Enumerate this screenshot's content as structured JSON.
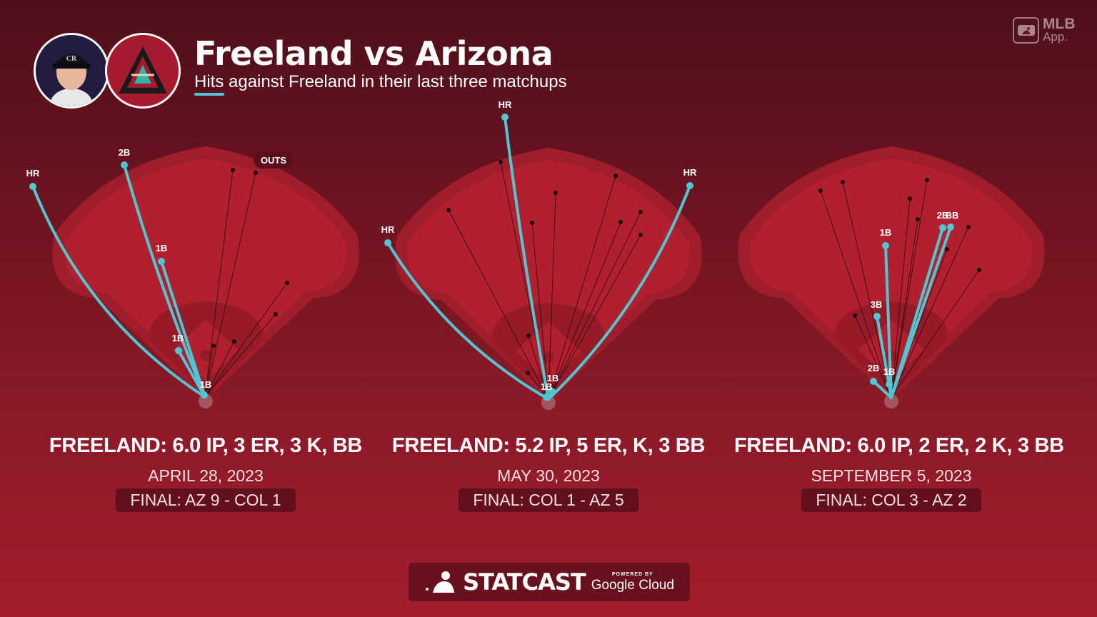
{
  "header": {
    "title": "Freeland vs Arizona",
    "subtitle": "Hits against Freeland in their last three matchups",
    "app_badge_top": "MLB",
    "app_badge_bottom": "App."
  },
  "colors": {
    "hit_line": "#4fc6d2",
    "out_line": "#1a0a0c",
    "field": "#b2202f",
    "field_outer": "#a01d2c"
  },
  "icons": [
    "player-headshot",
    "diamondbacks-logo",
    "mlb-app-logo",
    "statcast-logo"
  ],
  "outs_label": "OUTS",
  "games": [
    {
      "summary": "FREELAND: 6.0 IP, 3 ER, 3 K, BB",
      "date": "APRIL 28, 2023",
      "final": "FINAL: AZ 9 - COL 1",
      "hit_labels": [
        "HR",
        "2B",
        "1B",
        "1B",
        "1B"
      ]
    },
    {
      "summary": "FREELAND: 5.2 IP, 5 ER, K, 3 BB",
      "date": "MAY 30, 2023",
      "final": "FINAL: COL 1 - AZ 5",
      "hit_labels": [
        "HR",
        "HR",
        "HR",
        "1B",
        "1B"
      ]
    },
    {
      "summary": "FREELAND: 6.0 IP, 2 ER, 2 K, 3 BB",
      "date": "SEPTEMBER 5, 2023",
      "final": "FINAL: COL 3 - AZ 2",
      "hit_labels": [
        "1B",
        "2B",
        "BB",
        "3B",
        "2B",
        "1B"
      ]
    }
  ],
  "footer": {
    "brand": "STATCAST",
    "powered_by": "POWERED BY",
    "cloud": "Google Cloud"
  }
}
